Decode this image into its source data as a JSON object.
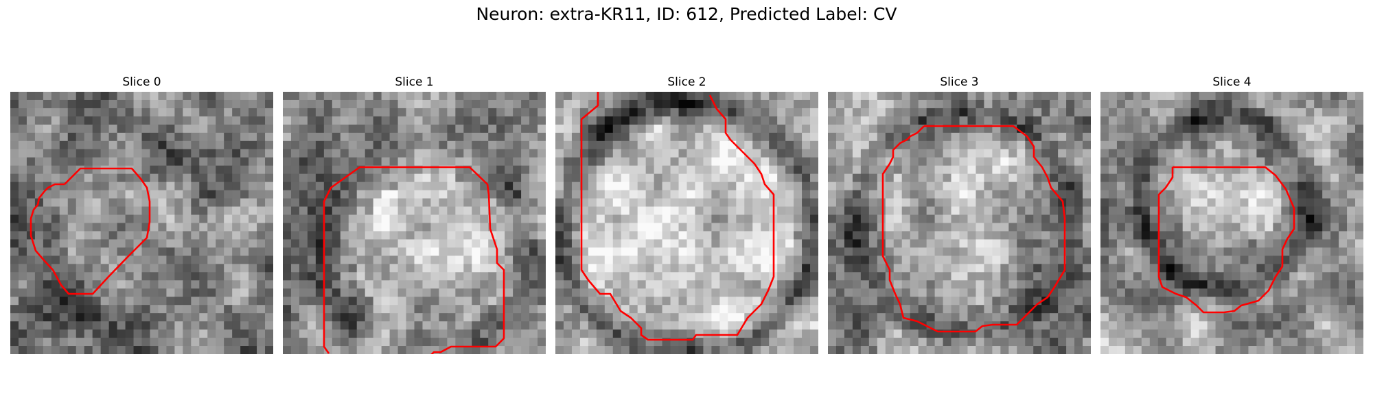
{
  "figure": {
    "title": "Neuron: extra-KR11, ID: 612, Predicted Label: CV",
    "contour_color": "#ff0000"
  },
  "panels": [
    {
      "title": "Slice 0",
      "image": "grayscale-patch",
      "overlay": "red-contour"
    },
    {
      "title": "Slice 1",
      "image": "grayscale-patch",
      "overlay": "red-contour"
    },
    {
      "title": "Slice 2",
      "image": "grayscale-patch",
      "overlay": "red-contour"
    },
    {
      "title": "Slice 3",
      "image": "grayscale-patch",
      "overlay": "red-contour"
    },
    {
      "title": "Slice 4",
      "image": "grayscale-patch",
      "overlay": "red-contour"
    }
  ]
}
